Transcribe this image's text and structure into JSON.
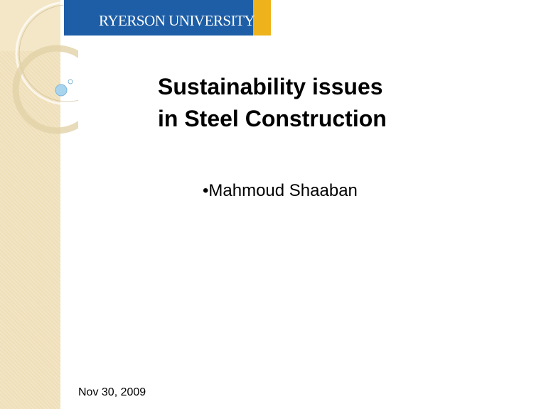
{
  "header": {
    "logo_text": "RYERSON UNIVERSITY",
    "brand_color": "#1e5ea6",
    "accent_color": "#eeb21c"
  },
  "slide": {
    "title_line1": "Sustainability issues",
    "title_line2": "in Steel Construction",
    "bullets": [
      "Mahmoud Shaaban"
    ],
    "bullet_char": "•",
    "date": "Nov 30, 2009"
  }
}
